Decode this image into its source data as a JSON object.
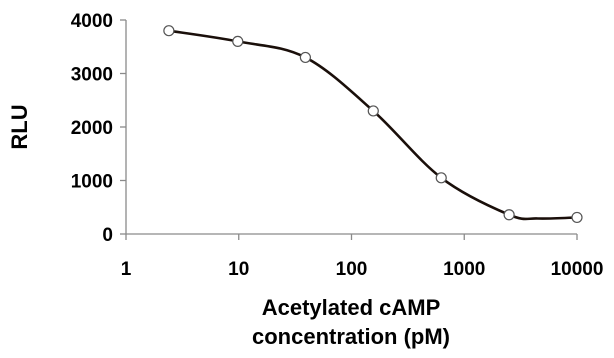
{
  "chart_data": {
    "type": "scatter",
    "title": "",
    "xlabel": [
      "Acetylated cAMP",
      "concentration (pM)"
    ],
    "ylabel": "RLU",
    "x_scale": "log",
    "xlim": [
      1,
      10000
    ],
    "ylim": [
      0,
      4000
    ],
    "x_ticks": [
      1,
      10,
      100,
      1000,
      10000
    ],
    "x_tick_labels": [
      "1",
      "10",
      "100",
      "1000",
      "10000"
    ],
    "y_ticks": [
      0,
      1000,
      2000,
      3000,
      4000
    ],
    "y_tick_labels": [
      "0",
      "1000",
      "2000",
      "3000",
      "4000"
    ],
    "grid": false,
    "legend": "none",
    "line_color": "#1a0f0a",
    "marker_fill": "#ffffff",
    "marker_stroke": "#555555",
    "points": [
      {
        "x": 2.4,
        "y": 3800
      },
      {
        "x": 9.8,
        "y": 3600
      },
      {
        "x": 39,
        "y": 3300
      },
      {
        "x": 156,
        "y": 2300
      },
      {
        "x": 625,
        "y": 1050
      },
      {
        "x": 2500,
        "y": 360
      },
      {
        "x": 10000,
        "y": 310
      }
    ],
    "curve": [
      {
        "x": 2.4,
        "y": 3800
      },
      {
        "x": 9.8,
        "y": 3600
      },
      {
        "x": 39,
        "y": 3300
      },
      {
        "x": 156,
        "y": 2300
      },
      {
        "x": 625,
        "y": 1050
      },
      {
        "x": 2500,
        "y": 360
      },
      {
        "x": 4500,
        "y": 290
      },
      {
        "x": 10000,
        "y": 310
      }
    ]
  }
}
